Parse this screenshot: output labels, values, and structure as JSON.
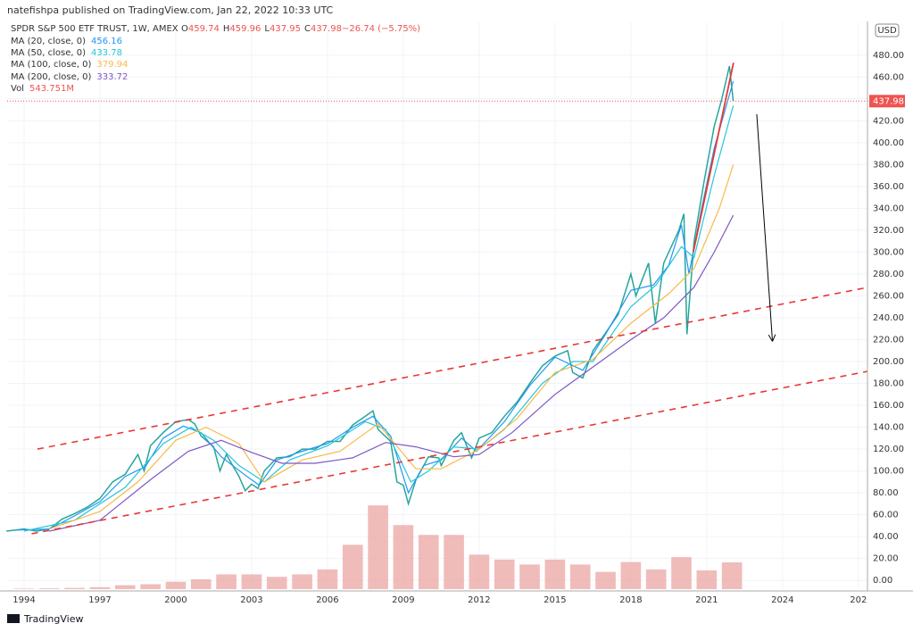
{
  "header": "natefishpa published on TradingView.com, Jan 22, 2022 10:33 UTC",
  "footer": "TradingView",
  "chart_data": {
    "type": "line",
    "currency": "USD",
    "ohlc": [
      {
        "label": "O",
        "value": "459.74"
      },
      {
        "label": "H",
        "value": "459.96"
      },
      {
        "label": "L",
        "value": "437.95"
      },
      {
        "label": "C",
        "value": "437.98"
      },
      {
        "label": "",
        "value": "−26.74 (−5.75%)"
      }
    ],
    "last_price": 437.98,
    "last_color": "#ef5350",
    "xlim": [
      1993.33,
      2027.36
    ],
    "xticks": [
      1994,
      1997,
      2000,
      2003,
      2006,
      2009,
      2012,
      2015,
      2018,
      2021,
      2024,
      {
        "value": 2027,
        "label": "202"
      }
    ],
    "ylim": [
      -8,
      510
    ],
    "yticks": [
      {
        "value": 0,
        "label": "0.00"
      },
      {
        "value": 20,
        "label": "20.00"
      },
      {
        "value": 40,
        "label": "40.00"
      },
      {
        "value": 60,
        "label": "60.00"
      },
      {
        "value": 80,
        "label": "80.00"
      },
      {
        "value": 100,
        "label": "100.00"
      },
      {
        "value": 120,
        "label": "120.00"
      },
      {
        "value": 140,
        "label": "140.00"
      },
      {
        "value": 160,
        "label": "160.00"
      },
      {
        "value": 180,
        "label": "180.00"
      },
      {
        "value": 200,
        "label": "200.00"
      },
      {
        "value": 220,
        "label": "220.00"
      },
      {
        "value": 240,
        "label": "240.00"
      },
      {
        "value": 260,
        "label": "260.00"
      },
      {
        "value": 280,
        "label": "280.00"
      },
      {
        "value": 300,
        "label": "300.00"
      },
      {
        "value": 320,
        "label": "320.00"
      },
      {
        "value": 340,
        "label": "340.00"
      },
      {
        "value": 360,
        "label": "360.00"
      },
      {
        "value": 380,
        "label": "380.00"
      },
      {
        "value": 400,
        "label": "400.00"
      },
      {
        "value": 420,
        "label": "420.00"
      },
      {
        "value": 440,
        "label": "440.00"
      },
      {
        "value": 460,
        "label": "460.00"
      },
      {
        "value": 480,
        "label": "480.00"
      }
    ],
    "y2lim": [
      0,
      11500
    ],
    "grid": true,
    "series": [
      {
        "name": "SPDR S&P 500 ETF TRUST, 1W, AMEX",
        "color": "#26a69a",
        "x": [
          1993.3,
          1994,
          1994.5,
          1995,
          1995.5,
          1996,
          1996.5,
          1997,
          1997.5,
          1998,
          1998.5,
          1998.75,
          1999,
          1999.5,
          2000,
          2000.5,
          2000.75,
          2001,
          2001.5,
          2001.75,
          2002,
          2002.5,
          2002.75,
          2003,
          2003.25,
          2003.5,
          2004,
          2004.5,
          2005,
          2005.5,
          2006,
          2006.5,
          2007,
          2007.5,
          2007.8,
          2008,
          2008.5,
          2008.75,
          2009,
          2009.2,
          2009.5,
          2010,
          2010.4,
          2010.5,
          2011,
          2011.3,
          2011.7,
          2012,
          2012.5,
          2013,
          2013.5,
          2014,
          2014.5,
          2015,
          2015.5,
          2015.7,
          2016.1,
          2016.5,
          2017,
          2017.5,
          2018,
          2018.2,
          2018.7,
          2018.97,
          2019.3,
          2019.9,
          2020.1,
          2020.22,
          2020.5,
          2020.9,
          2021.3,
          2021.6,
          2021.9,
          2022.05
        ],
        "values": [
          45,
          47,
          45,
          47,
          56,
          61,
          67,
          75,
          90,
          97,
          115,
          100,
          123,
          135,
          145,
          147,
          143,
          132,
          122,
          100,
          115,
          95,
          82,
          88,
          84,
          100,
          112,
          113,
          120,
          120,
          127,
          127,
          142,
          150,
          155,
          138,
          127,
          90,
          87,
          70,
          92,
          113,
          112,
          105,
          128,
          135,
          112,
          130,
          135,
          150,
          163,
          180,
          196,
          205,
          210,
          190,
          185,
          210,
          226,
          243,
          280,
          260,
          290,
          235,
          290,
          320,
          335,
          225,
          310,
          365,
          415,
          440,
          470,
          437.98
        ]
      },
      {
        "name": "MA (20, close, 0)",
        "last": "456.16",
        "color": "#2196f3",
        "x": [
          1993.7,
          1995,
          1996,
          1997,
          1998,
          1998.8,
          1999.5,
          2000.3,
          2001,
          2001.8,
          2002.7,
          2003.3,
          2004,
          2005,
          2006,
          2007,
          2007.8,
          2008.5,
          2009.2,
          2009.8,
          2010.5,
          2011.3,
          2011.9,
          2013,
          2014,
          2015,
          2016.1,
          2017,
          2018,
          2018.9,
          2019.5,
          2020,
          2020.3,
          2020.8,
          2021.3,
          2022.05
        ],
        "values": [
          46,
          47,
          59,
          72,
          95,
          104,
          130,
          141,
          135,
          113,
          97,
          87,
          110,
          118,
          125,
          140,
          150,
          132,
          80,
          105,
          110,
          130,
          118,
          145,
          178,
          204,
          192,
          225,
          265,
          270,
          288,
          325,
          280,
          340,
          395,
          456.16
        ]
      },
      {
        "name": "MA (50, close, 0)",
        "last": "433.78",
        "color": "#26c6da",
        "x": [
          1994,
          1996,
          1998,
          1999.5,
          2000.6,
          2001.5,
          2002.5,
          2003.5,
          2004.5,
          2006,
          2007.5,
          2008.3,
          2009.3,
          2010,
          2011,
          2012,
          2013,
          2014.5,
          2015.7,
          2016.5,
          2018,
          2019,
          2020,
          2020.5,
          2021.3,
          2022.05
        ],
        "values": [
          45,
          55,
          85,
          125,
          140,
          128,
          105,
          90,
          110,
          123,
          145,
          138,
          90,
          100,
          122,
          120,
          138,
          180,
          200,
          200,
          250,
          270,
          305,
          295,
          370,
          433.78
        ]
      },
      {
        "name": "MA (100, close, 0)",
        "last": "379.94",
        "color": "#f9b949",
        "x": [
          1995,
          1997,
          1998.5,
          2000,
          2001.2,
          2002.5,
          2003.5,
          2005,
          2006.5,
          2008,
          2009.5,
          2010.5,
          2012,
          2013.5,
          2015,
          2016.5,
          2018,
          2019.5,
          2020.5,
          2021.5,
          2022.05
        ],
        "values": [
          47,
          63,
          90,
          128,
          140,
          125,
          90,
          110,
          118,
          143,
          102,
          102,
          120,
          148,
          190,
          202,
          235,
          262,
          285,
          340,
          379.94
        ]
      },
      {
        "name": "MA (200, close, 0)",
        "last": "333.72",
        "color": "#7e57c2",
        "x": [
          1995,
          1997,
          1999,
          2000.5,
          2001.8,
          2003,
          2004.2,
          2005.5,
          2007,
          2008.3,
          2009.5,
          2011,
          2012,
          2013.3,
          2015,
          2016.5,
          2018,
          2019.3,
          2020.5,
          2021.3,
          2022.05
        ],
        "values": [
          45,
          55,
          92,
          118,
          128,
          117,
          107,
          107,
          112,
          126,
          122,
          113,
          115,
          135,
          170,
          195,
          220,
          240,
          268,
          300,
          333.72
        ]
      },
      {
        "name": "Vol",
        "last": "543.751M",
        "color": "#e9a09c",
        "axis": "y2",
        "kind": "bar",
        "x": [
          1994,
          1995,
          1996,
          1997,
          1998,
          1999,
          2000,
          2001,
          2002,
          2003,
          2004,
          2005,
          2006,
          2007,
          2008,
          2009,
          2010,
          2011,
          2012,
          2013,
          2014,
          2015,
          2016,
          2017,
          2018,
          2019,
          2020,
          2021,
          2022
        ],
        "values": [
          10,
          15,
          25,
          40,
          80,
          100,
          150,
          200,
          300,
          300,
          250,
          300,
          400,
          900,
          1700,
          1300,
          1100,
          1100,
          700,
          600,
          500,
          600,
          500,
          350,
          550,
          400,
          650,
          380,
          543.751
        ]
      }
    ],
    "drawings": [
      {
        "x": [
          1994.53,
          2027.36
        ],
        "y": [
          120,
          267.7
        ],
        "color": "#e53935",
        "dash": true
      },
      {
        "x": [
          1994.3,
          2027.36
        ],
        "y": [
          42.6,
          191
        ],
        "color": "#e53935",
        "dash": true
      },
      {
        "x": [
          2020.47,
          2022.06
        ],
        "y": [
          300,
          473
        ],
        "color": "#e53935",
        "dash": false
      },
      {
        "x": [
          2022.98,
          2023.6
        ],
        "y": [
          426,
          219
        ],
        "color": "#000000",
        "dash": false,
        "arrow": true
      }
    ]
  }
}
